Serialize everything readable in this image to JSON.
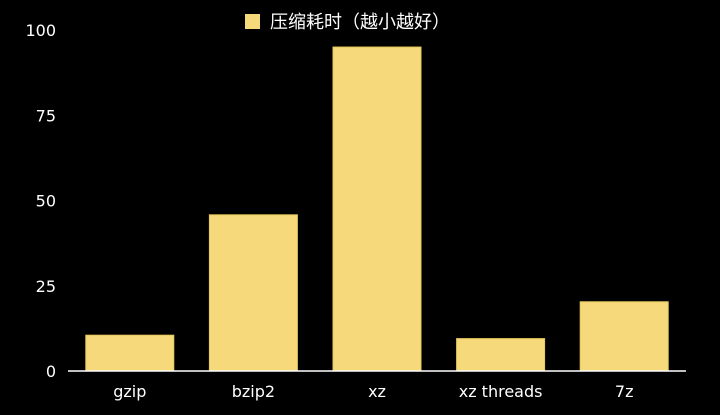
{
  "chart_data": {
    "type": "bar",
    "categories": [
      "gzip",
      "bzip2",
      "xz",
      "xz threads",
      "7z"
    ],
    "series": [
      {
        "name": "压缩耗时（越小越好）",
        "values": [
          10.5,
          45.8,
          95.0,
          9.5,
          20.3
        ]
      }
    ],
    "ylim": [
      0,
      100
    ],
    "yticks": [
      0,
      25,
      50,
      75,
      100
    ],
    "grid": false,
    "legend_position": "top-center",
    "colors": {
      "bar": "#f5d97a",
      "bar_stroke": "#e8c95e",
      "background": "#000000",
      "text": "#ffffff",
      "axis": "#ffffff"
    }
  }
}
